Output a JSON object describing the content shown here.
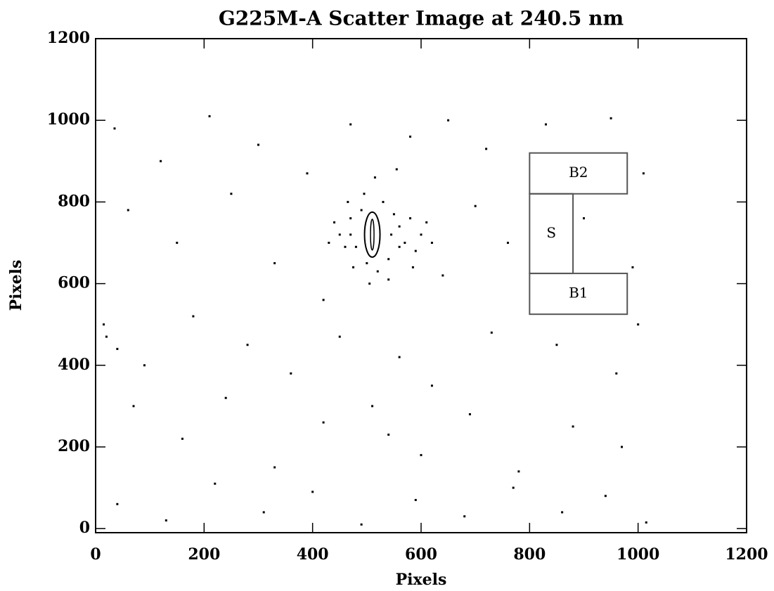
{
  "chart_data": {
    "type": "scatter",
    "title": "G225M-A Scatter Image at 240.5 nm",
    "x_label": "Pixels",
    "y_label": "Pixels",
    "xlim": [
      0,
      1200
    ],
    "ylim": [
      -10,
      1200
    ],
    "xticks": [
      0,
      200,
      400,
      600,
      800,
      1000,
      1200
    ],
    "yticks": [
      0,
      200,
      400,
      600,
      800,
      1000,
      1200
    ],
    "color": "#000000",
    "x": [
      35,
      120,
      210,
      300,
      390,
      470,
      580,
      650,
      720,
      830,
      950,
      1010,
      60,
      150,
      250,
      330,
      420,
      640,
      700,
      760,
      900,
      990,
      20,
      40,
      15,
      90,
      180,
      280,
      360,
      450,
      560,
      620,
      730,
      850,
      960,
      1000,
      70,
      160,
      240,
      330,
      420,
      510,
      540,
      600,
      690,
      780,
      880,
      970,
      40,
      130,
      220,
      310,
      400,
      490,
      590,
      680,
      770,
      860,
      940,
      1015,
      450,
      470,
      480,
      490,
      500,
      530,
      540,
      560,
      570,
      550,
      460,
      440,
      580,
      600,
      520,
      495,
      515,
      555,
      475,
      590,
      610,
      430,
      540,
      505,
      585,
      465,
      620,
      545,
      470,
      560
    ],
    "y": [
      980,
      900,
      1010,
      940,
      870,
      990,
      960,
      1000,
      930,
      990,
      1005,
      870,
      780,
      700,
      820,
      650,
      560,
      620,
      790,
      700,
      760,
      640,
      470,
      440,
      500,
      400,
      520,
      450,
      380,
      470,
      420,
      350,
      480,
      450,
      380,
      500,
      300,
      220,
      320,
      150,
      260,
      300,
      230,
      180,
      280,
      140,
      250,
      200,
      60,
      20,
      110,
      40,
      90,
      10,
      70,
      30,
      100,
      40,
      80,
      15,
      720,
      760,
      690,
      780,
      650,
      800,
      660,
      740,
      700,
      770,
      690,
      750,
      760,
      720,
      630,
      820,
      860,
      880,
      640,
      680,
      750,
      700,
      610,
      600,
      640,
      800,
      700,
      720,
      720,
      690
    ],
    "regions": [
      {
        "label": "B2",
        "x": [
          800,
          980
        ],
        "y": [
          820,
          920
        ]
      },
      {
        "label": "S",
        "x": [
          800,
          880
        ],
        "y": [
          625,
          820
        ]
      },
      {
        "label": "B1",
        "x": [
          800,
          980
        ],
        "y": [
          525,
          625
        ]
      }
    ]
  }
}
